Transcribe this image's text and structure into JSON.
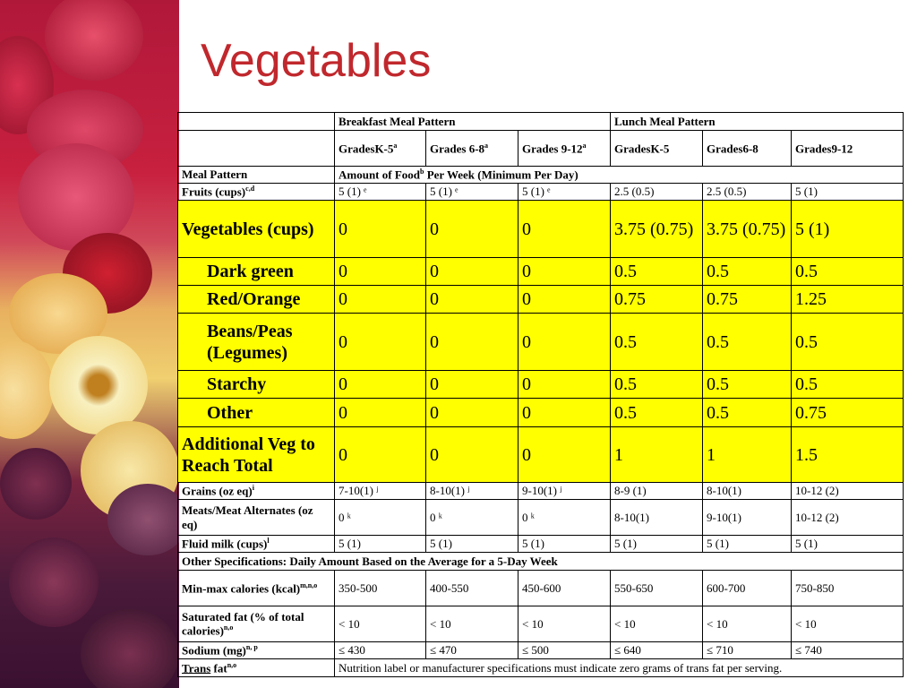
{
  "title": "Vegetables",
  "header": {
    "breakfast": "Breakfast Meal Pattern",
    "lunch": "Lunch Meal Pattern",
    "grades": [
      "GradesK-5",
      "Grades 6-8",
      "Grades 9-12",
      "GradesK-5",
      "Grades6-8",
      "Grades9-12"
    ],
    "grade_sups": [
      "a",
      "a",
      "a",
      "",
      "",
      ""
    ],
    "meal_pattern": "Meal Pattern",
    "amount": "Amount of Food",
    "amount_sup": "b",
    "amount_rest": " Per Week  (Minimum  Per Day)"
  },
  "rows": [
    {
      "label": "Fruits (cups)",
      "sup": "c,d",
      "values": [
        "5 (1) ᵉ",
        "5 (1) ᵉ",
        "5 (1) ᵉ",
        "2.5 (0.5)",
        "2.5 (0.5)",
        "5 (1)"
      ]
    },
    {
      "label": "Vegetables (cups)",
      "values": [
        "0",
        "0",
        "0",
        "3.75 (0.75)",
        "3.75 (0.75)",
        "5 (1)"
      ]
    },
    {
      "label": "Dark green",
      "values": [
        "0",
        "0",
        "0",
        "0.5",
        "0.5",
        "0.5"
      ]
    },
    {
      "label": "Red/Orange",
      "values": [
        "0",
        "0",
        "0",
        "0.75",
        "0.75",
        "1.25"
      ]
    },
    {
      "label": "Beans/Peas (Legumes)",
      "values": [
        "0",
        "0",
        "0",
        "0.5",
        "0.5",
        "0.5"
      ]
    },
    {
      "label": "Starchy",
      "values": [
        "0",
        "0",
        "0",
        "0.5",
        "0.5",
        "0.5"
      ]
    },
    {
      "label": "Other",
      "values": [
        "0",
        "0",
        "0",
        "0.5",
        "0.5",
        "0.75"
      ]
    },
    {
      "label": "Additional Veg to Reach Total",
      "values": [
        "0",
        "0",
        "0",
        "1",
        "1",
        "1.5"
      ]
    },
    {
      "label": "Grains (oz eq)",
      "sup": "i",
      "values": [
        "7-10(1) ʲ",
        "8-10(1) ʲ",
        "9-10(1) ʲ",
        "8-9 (1)",
        "8-10(1)",
        "10-12 (2)"
      ]
    },
    {
      "label": "Meats/Meat Alternates (oz eq)",
      "values": [
        "0 ᵏ",
        "0 ᵏ",
        "0 ᵏ",
        "8-10(1)",
        "9-10(1)",
        "10-12 (2)"
      ]
    },
    {
      "label": "Fluid milk (cups)",
      "sup": "l",
      "values": [
        "5 (1)",
        "5 (1)",
        "5 (1)",
        "5 (1)",
        "5 (1)",
        "5 (1)"
      ]
    },
    {
      "label": "Min-max calories (kcal)",
      "sup": "m,n,o",
      "values": [
        "350-500",
        "400-550",
        "450-600",
        "550-650",
        "600-700",
        "750-850"
      ]
    },
    {
      "label": "Saturated fat (% of total calories)",
      "sup": "n,o",
      "values": [
        "< 10",
        "< 10",
        "< 10",
        "< 10",
        "< 10",
        "< 10"
      ]
    },
    {
      "label": "Sodium (mg)",
      "sup": "n, p",
      "values": [
        "≤ 430",
        "≤ 470",
        "≤ 500",
        "≤ 640",
        "≤ 710",
        "≤ 740"
      ]
    }
  ],
  "other_spec": "Other Specifications: Daily  Amount Based on the Average for a 5-Day Week",
  "trans": {
    "label": "Trans",
    "label_rest": " fat",
    "sup": "n,o",
    "text": "Nutrition label or manufacturer specifications must indicate zero grams of trans fat per serving."
  }
}
